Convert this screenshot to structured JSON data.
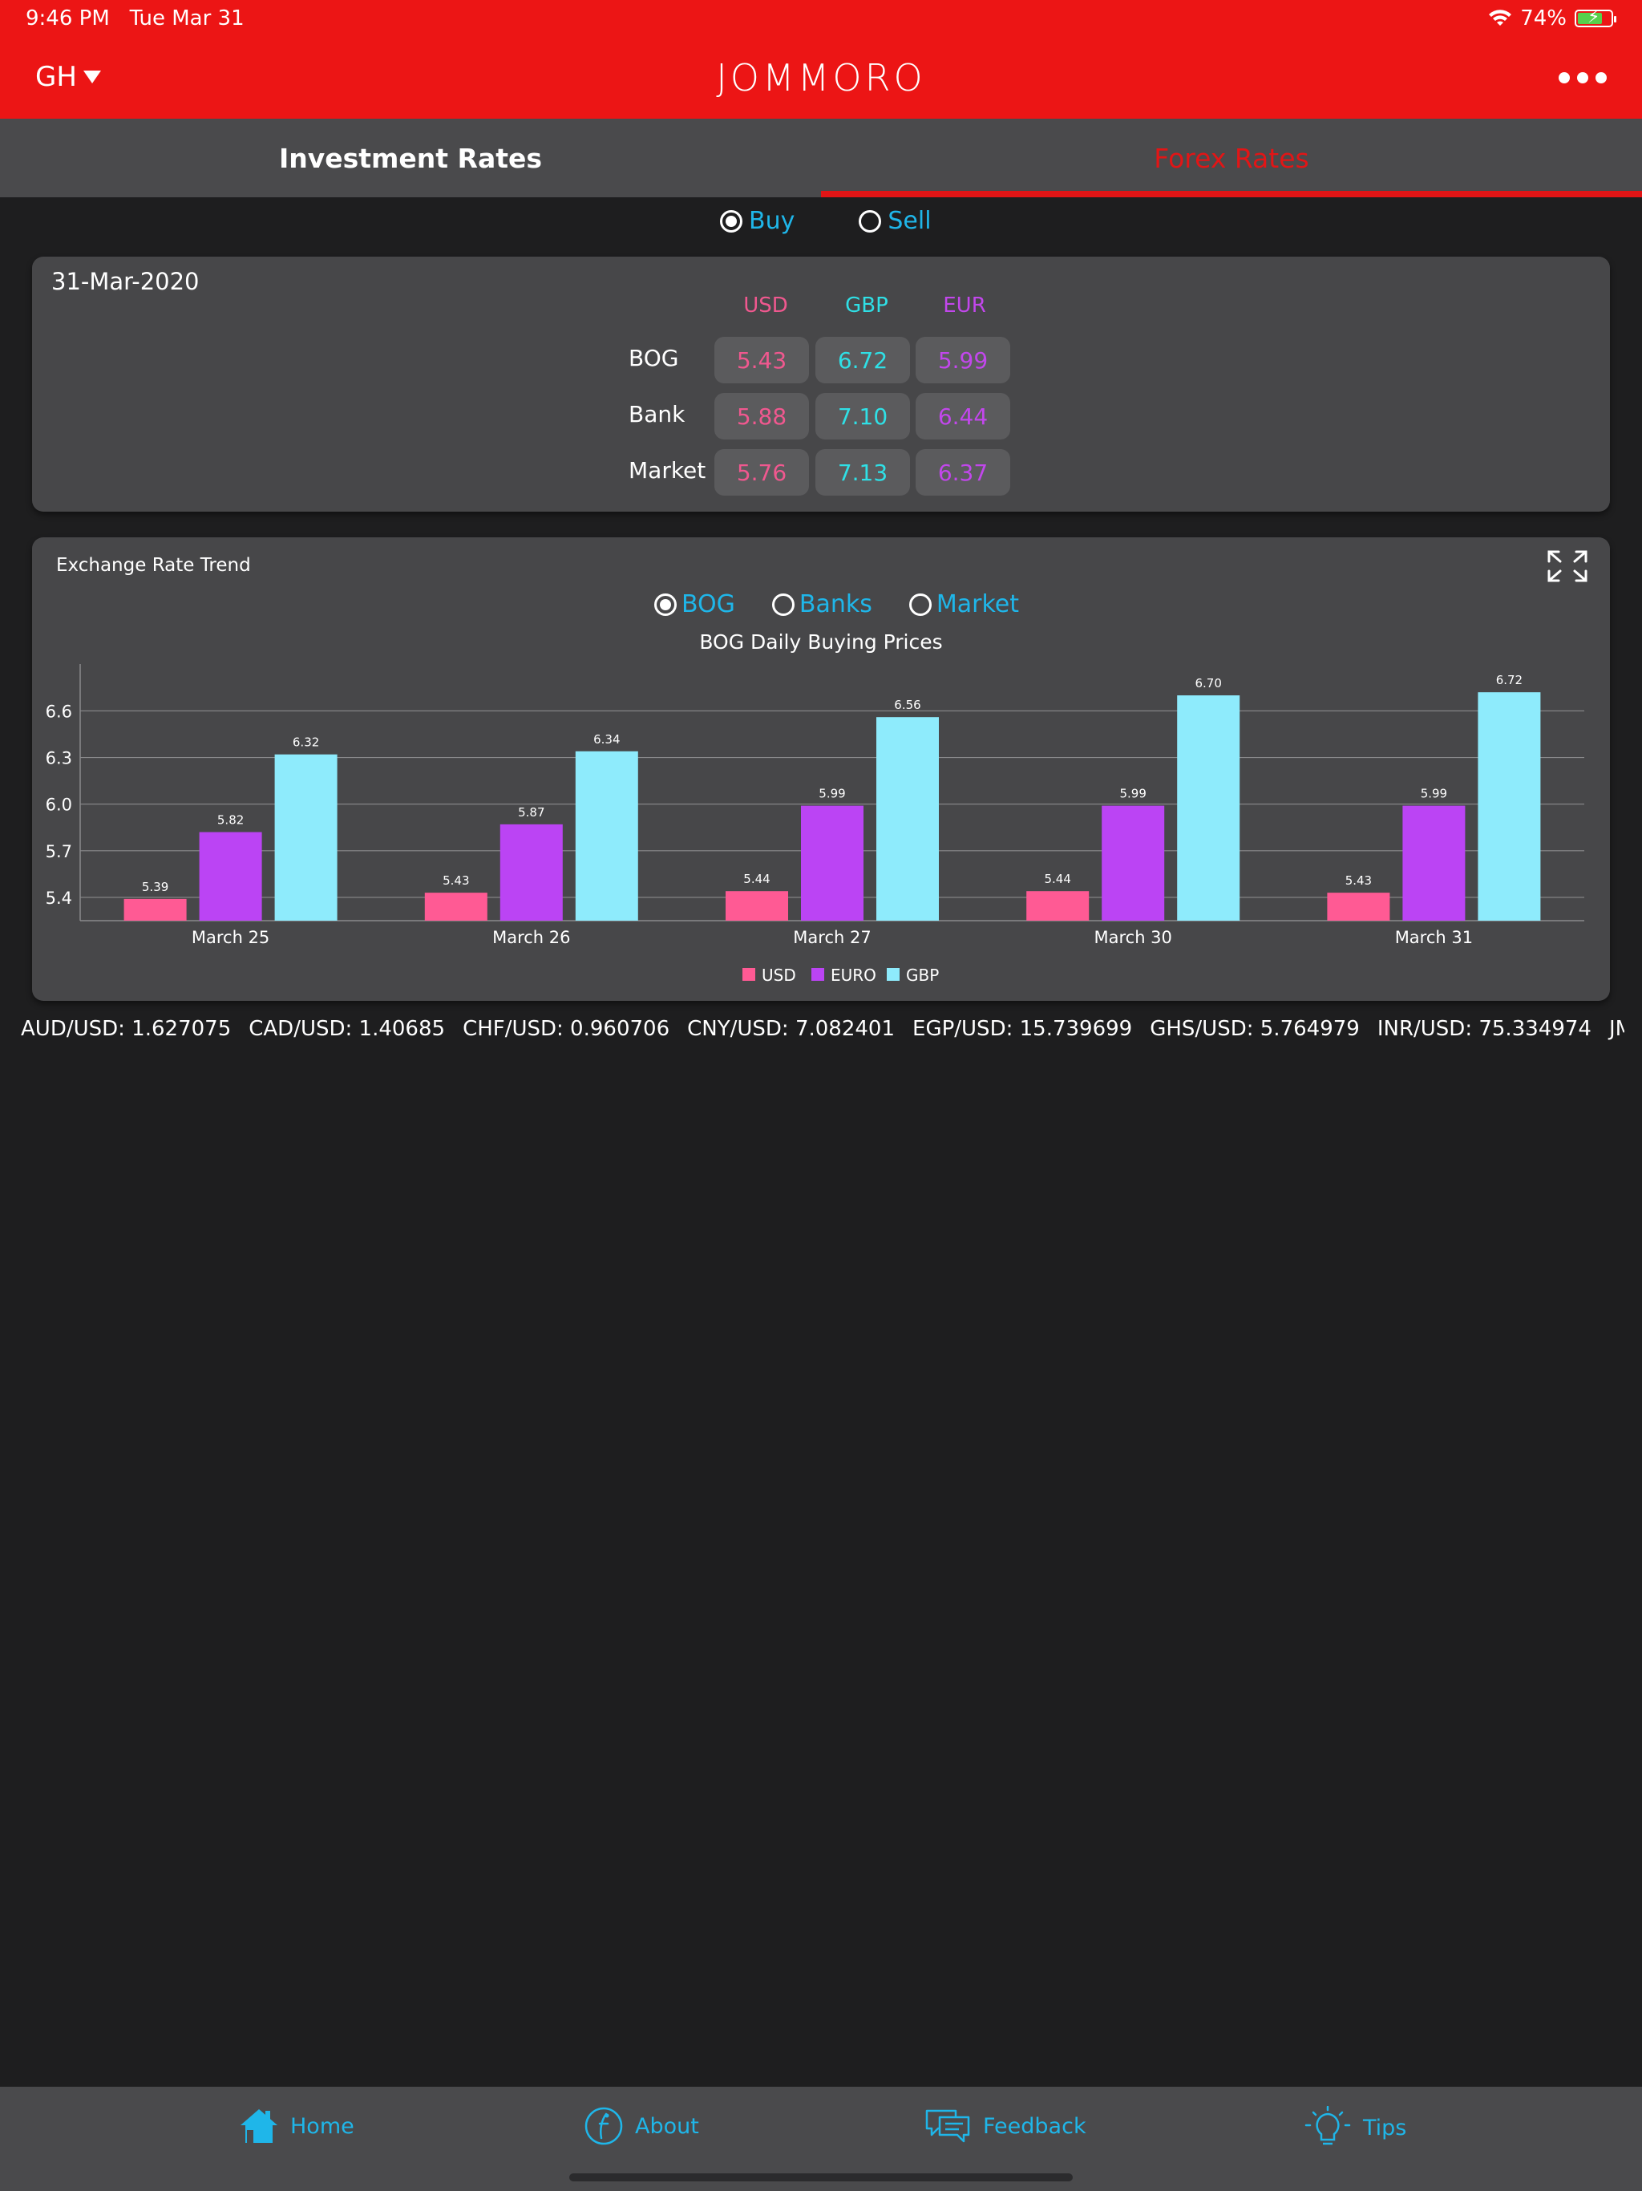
{
  "status": {
    "time": "9:46 PM",
    "date": "Tue Mar 31",
    "battery": "74%",
    "battery_level": 0.74
  },
  "header": {
    "country": "GH",
    "logo": "JOMMORO"
  },
  "tabs": [
    {
      "label": "Investment Rates",
      "active": false
    },
    {
      "label": "Forex Rates",
      "active": true
    }
  ],
  "mode": {
    "buy_label": "Buy",
    "sell_label": "Sell",
    "selected": "Buy"
  },
  "rates": {
    "date": "31-Mar-2020",
    "columns": [
      "USD",
      "GBP",
      "EUR"
    ],
    "rows": [
      {
        "label": "BOG",
        "values": [
          "5.43",
          "6.72",
          "5.99"
        ]
      },
      {
        "label": "Bank",
        "values": [
          "5.88",
          "7.10",
          "6.44"
        ]
      },
      {
        "label": "Market",
        "values": [
          "5.76",
          "7.13",
          "6.37"
        ]
      }
    ]
  },
  "trend": {
    "title": "Exchange Rate Trend",
    "sources": [
      "BOG",
      "Banks",
      "Market"
    ],
    "selected_source": "BOG"
  },
  "chart_data": {
    "type": "bar",
    "title": "BOG Daily Buying Prices",
    "categories": [
      "March 25",
      "March 26",
      "March 27",
      "March 30",
      "March 31"
    ],
    "series": [
      {
        "name": "USD",
        "color": "#ff5a94",
        "values": [
          5.39,
          5.43,
          5.44,
          5.44,
          5.43
        ]
      },
      {
        "name": "EURO",
        "color": "#bb44f4",
        "values": [
          5.82,
          5.87,
          5.99,
          5.99,
          5.99
        ]
      },
      {
        "name": "GBP",
        "color": "#8eebfc",
        "values": [
          6.32,
          6.34,
          6.56,
          6.7,
          6.72
        ]
      }
    ],
    "yticks": [
      "5.4",
      "5.7",
      "6.0",
      "6.3",
      "6.6"
    ],
    "ylim": [
      5.25,
      6.85
    ],
    "grid": true,
    "legend": "bottom-center"
  },
  "ticker": [
    "AUD/USD: 1.627075",
    "CAD/USD: 1.40685",
    "CHF/USD: 0.960706",
    "CNY/USD: 7.082401",
    "EGP/USD: 15.739699",
    "GHS/USD: 5.764979",
    "INR/USD: 75.334974",
    "JMD/U"
  ],
  "nav": [
    {
      "label": "Home",
      "icon": "home-icon"
    },
    {
      "label": "About",
      "icon": "about-icon"
    },
    {
      "label": "Feedback",
      "icon": "feedback-icon"
    },
    {
      "label": "Tips",
      "icon": "bulb-icon"
    }
  ]
}
